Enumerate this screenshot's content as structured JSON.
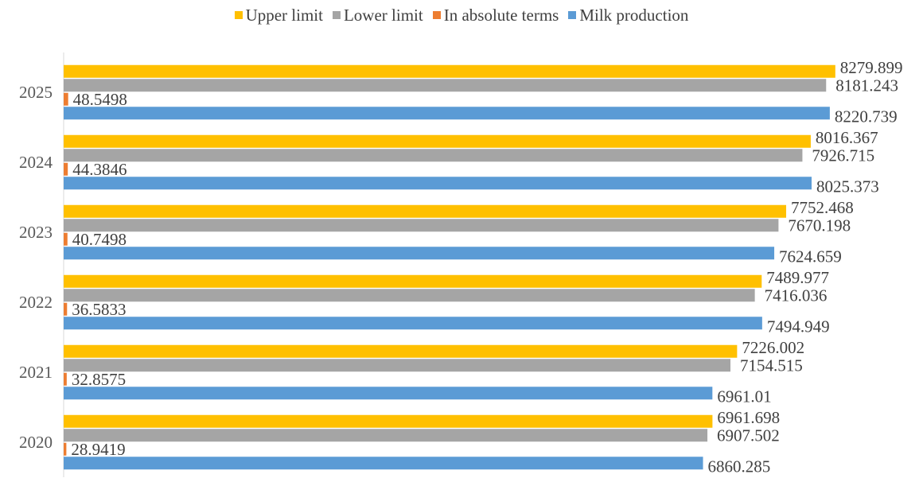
{
  "chart_data": {
    "type": "bar",
    "orientation": "horizontal",
    "categories": [
      "2025",
      "2024",
      "2023",
      "2022",
      "2021",
      "2020"
    ],
    "series": [
      {
        "name": "Upper limit",
        "color": "#FFC000",
        "values": [
          8279.899,
          8016.367,
          7752.468,
          7489.977,
          7226.002,
          6961.698
        ],
        "labels": [
          "8279.899",
          "8016.367",
          "7752.468",
          "7489.977",
          "7226.002",
          "6961.698"
        ]
      },
      {
        "name": "Lower limit",
        "color": "#A5A5A5",
        "values": [
          8181.243,
          7926.715,
          7670.198,
          7416.036,
          7154.515,
          6907.502
        ],
        "labels": [
          "8181.243",
          "7926.715",
          "7670.198",
          "7416.036",
          "7154.515",
          "6907.502"
        ]
      },
      {
        "name": "In absolute terms",
        "color": "#ED7D31",
        "values": [
          48.5498,
          44.3846,
          40.7498,
          36.5833,
          32.8575,
          28.9419
        ],
        "labels": [
          "48.5498",
          "44.3846",
          "40.7498",
          "36.5833",
          "32.8575",
          "28.9419"
        ]
      },
      {
        "name": "Milk production",
        "color": "#5B9BD5",
        "values": [
          8220.739,
          8025.373,
          7624.659,
          7494.949,
          6961.01,
          6860.285
        ],
        "labels": [
          "8220.739",
          "8025.373",
          "7624.659",
          "7494.949",
          "6961.01",
          "6860.285"
        ]
      }
    ],
    "legend_position": "top",
    "grid": false,
    "xlim": [
      0,
      9050
    ],
    "title": "",
    "xlabel": "",
    "ylabel": ""
  }
}
